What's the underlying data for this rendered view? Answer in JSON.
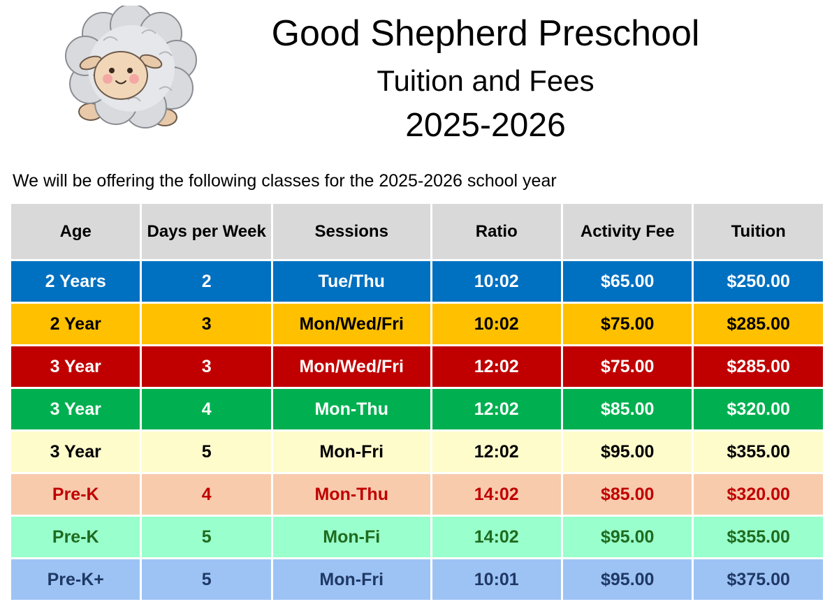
{
  "logo": {
    "icon": "sheep-icon"
  },
  "header": {
    "title": "Good Shepherd Preschool",
    "subtitle": "Tuition and Fees",
    "year": "2025-2026"
  },
  "intro": "We will be offering the following classes for the 2025-2026 school year",
  "table": {
    "headers": [
      "Age",
      "Days per Week",
      "Sessions",
      "Ratio",
      "Activity Fee",
      "Tuition"
    ],
    "header_color": "#d9d9d9",
    "rows": [
      {
        "cells": [
          "2 Years",
          "2",
          "Tue/Thu",
          "10:02",
          "$65.00",
          "$250.00"
        ],
        "bg": "#0070c0",
        "fg": "#ffffff"
      },
      {
        "cells": [
          "2 Year",
          "3",
          "Mon/Wed/Fri",
          "10:02",
          "$75.00",
          "$285.00"
        ],
        "bg": "#ffc000",
        "fg": "#000000"
      },
      {
        "cells": [
          "3 Year",
          "3",
          "Mon/Wed/Fri",
          "12:02",
          "$75.00",
          "$285.00"
        ],
        "bg": "#c00000",
        "fg": "#ffffff"
      },
      {
        "cells": [
          "3 Year",
          "4",
          "Mon-Thu",
          "12:02",
          "$85.00",
          "$320.00"
        ],
        "bg": "#00b050",
        "fg": "#ffffff"
      },
      {
        "cells": [
          "3 Year",
          "5",
          "Mon-Fri",
          "12:02",
          "$95.00",
          "$355.00"
        ],
        "bg": "#fffccc",
        "fg": "#000000"
      },
      {
        "cells": [
          "Pre-K",
          "4",
          "Mon-Thu",
          "14:02",
          "$85.00",
          "$320.00"
        ],
        "bg": "#f8cbad",
        "fg": "#c00000"
      },
      {
        "cells": [
          "Pre-K",
          "5",
          "Mon-Fi",
          "14:02",
          "$95.00",
          "$355.00"
        ],
        "bg": "#99ffcc",
        "fg": "#1f6b1f"
      },
      {
        "cells": [
          "Pre-K+",
          "5",
          "Mon-Fri",
          "10:01",
          "$95.00",
          "$375.00"
        ],
        "bg": "#9dc3f5",
        "fg": "#1f3864"
      }
    ]
  }
}
